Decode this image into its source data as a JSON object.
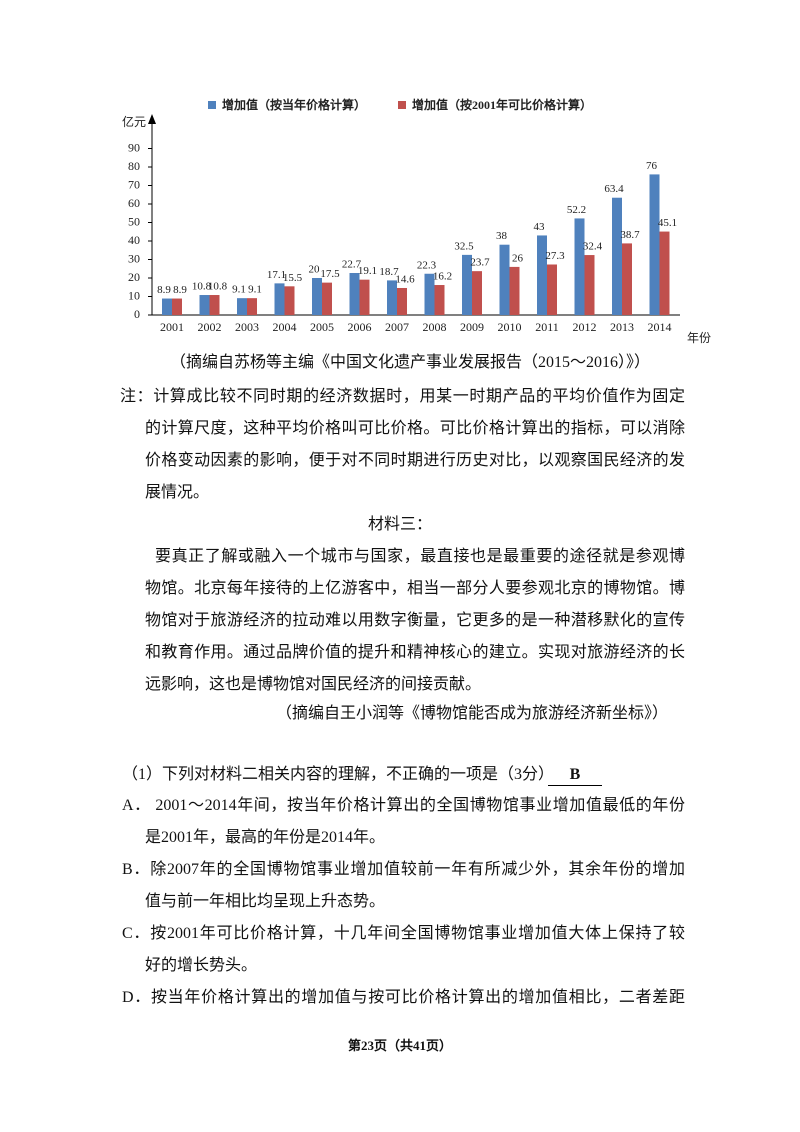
{
  "chart_data": {
    "type": "bar",
    "y_unit": "亿元",
    "x_unit": "年份",
    "categories": [
      "2001",
      "2002",
      "2003",
      "2004",
      "2005",
      "2006",
      "2007",
      "2008",
      "2009",
      "2010",
      "2011",
      "2012",
      "2013",
      "2014"
    ],
    "series": [
      {
        "name": "增加值（按当年价格计算）",
        "color": "#4f81bd",
        "values": [
          8.9,
          10.8,
          9.1,
          17.1,
          20,
          22.7,
          18.7,
          22.3,
          32.5,
          38,
          43,
          52.2,
          63.4,
          76
        ]
      },
      {
        "name": "增加值（按2001年可比价格计算）",
        "color": "#c0504d",
        "values": [
          8.9,
          10.8,
          9.1,
          15.5,
          17.5,
          19.1,
          14.6,
          16.2,
          23.7,
          26,
          27.3,
          32.4,
          38.7,
          45.1
        ]
      }
    ],
    "ylim": [
      0,
      100
    ],
    "yticks": [
      0,
      10,
      20,
      30,
      40,
      50,
      60,
      70,
      80,
      90
    ]
  },
  "chart_source": "（摘编自苏杨等主编《中国文化遗产事业发展报告（2015～2016）》）",
  "note": [
    "注：计算成比较不同时期的经济数据时，用某一时期产品的平均价值作为固定",
    "的计算尺度，这种平均价格叫可比价格。可比价格计算出的指标，可以消除",
    "价格变动因素的影响，便于对不同时期进行历史对比，以观察国民经济的发",
    "展情况。"
  ],
  "material3": {
    "title": "材料三：",
    "lines": [
      "要真正了解或融入一个城市与国家，最直接也是最重要的途径就是参观博",
      "物馆。北京每年接待的上亿游客中，相当一部分人要参观北京的博物馆。博",
      "物馆对于旅游经济的拉动难以用数字衡量，它更多的是一种潜移默化的宣传",
      "和教育作用。通过品牌价值的提升和精神核心的建立。实现对旅游经济的长",
      "远影响，这也是博物馆对国民经济的间接贡献。"
    ],
    "source": "（摘编自王小润等《博物馆能否成为旅游经济新坐标》）"
  },
  "question": {
    "stem": "（1）下列对材料二相关内容的理解，不正确的一项是（3分）",
    "answer": "B",
    "options": [
      [
        "A．  2001～2014年间，按当年价格计算出的全国博物馆事业增加值最低的年份",
        "是2001年，最高的年份是2014年。"
      ],
      [
        "B．除2007年的全国博物馆事业增加值较前一年有所减少外，其余年份的增加",
        "值与前一年相比均呈现上升态势。"
      ],
      [
        "C．按2001年可比价格计算，十几年间全国博物馆事业增加值大体上保持了较",
        "好的增长势头。"
      ],
      [
        "D．按当年价格计算出的增加值与按可比价格计算出的增加值相比，二者差距"
      ]
    ]
  },
  "footer": "第23页（共41页）"
}
